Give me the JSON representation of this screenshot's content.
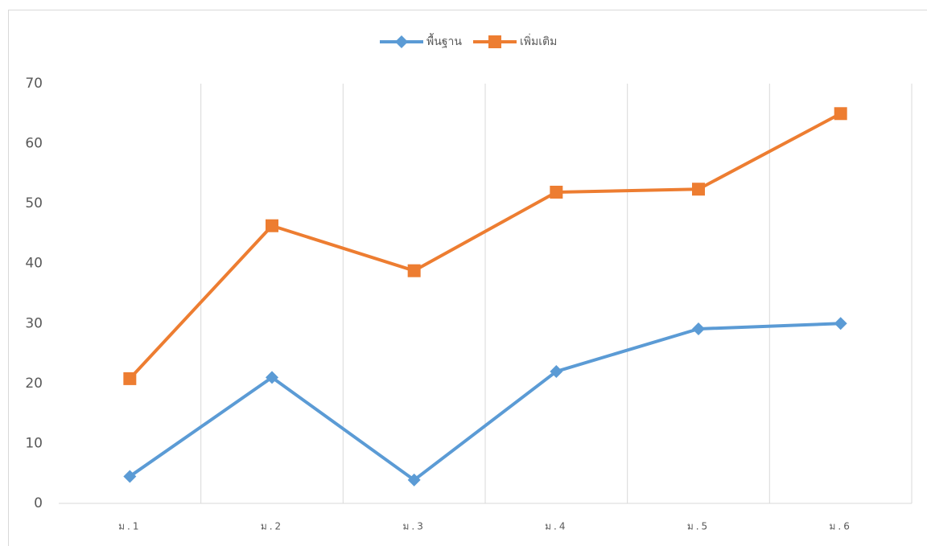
{
  "chart_data": {
    "type": "line",
    "categories": [
      "ม.1",
      "ม.2",
      "ม.3",
      "ม.4",
      "ม.5",
      "ม.6"
    ],
    "series": [
      {
        "name": "พื้นฐาน",
        "color": "#5b9bd5",
        "marker": "diamond",
        "values": [
          4.5,
          21,
          3.9,
          22,
          29.1,
          30
        ]
      },
      {
        "name": "เพิ่มเติม",
        "color": "#ed7d31",
        "marker": "square",
        "values": [
          20.8,
          46.3,
          38.8,
          51.9,
          52.4,
          65
        ]
      }
    ],
    "ylim": [
      0,
      70
    ],
    "yticks": [
      0,
      10,
      20,
      30,
      40,
      50,
      60,
      70
    ],
    "legend": "top"
  }
}
